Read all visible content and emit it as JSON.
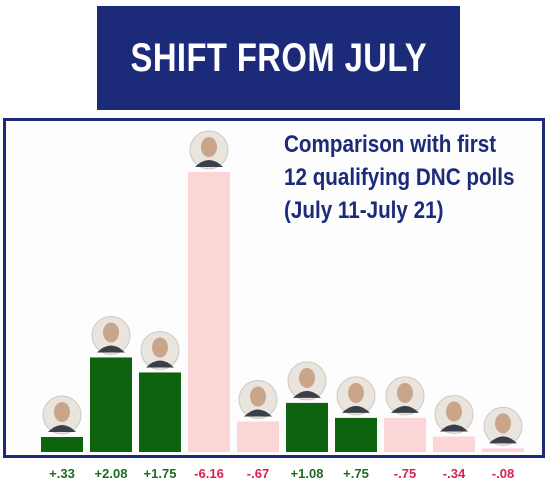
{
  "title": "SHIFT FROM JULY",
  "note_lines": [
    "Comparison with first",
    "12 qualifying DNC polls",
    "(July 11-July 21)"
  ],
  "colors": {
    "banner": "#1c2a7a",
    "positive_bar": "#0e640e",
    "negative_bar": "#fcd6d6",
    "positive_label": "#1f6b1f",
    "negative_label": "#d8214a"
  },
  "chart_data": {
    "type": "bar",
    "categories": [
      "+.33",
      "+2.08",
      "+1.75",
      "-6.16",
      "-.67",
      "+1.08",
      "+.75",
      "-.75",
      "-.34",
      "-.08"
    ],
    "values": [
      0.33,
      2.08,
      1.75,
      -6.16,
      -0.67,
      1.08,
      0.75,
      -0.75,
      -0.34,
      -0.08
    ],
    "bar_icons": [
      "candidate-photo-icon",
      "candidate-photo-icon",
      "candidate-photo-icon",
      "candidate-photo-icon",
      "candidate-photo-icon",
      "candidate-photo-icon",
      "candidate-photo-icon",
      "candidate-photo-icon",
      "candidate-photo-icon",
      "candidate-photo-icon"
    ],
    "note": "bar height shows absolute change; green = gain, pink = loss"
  }
}
